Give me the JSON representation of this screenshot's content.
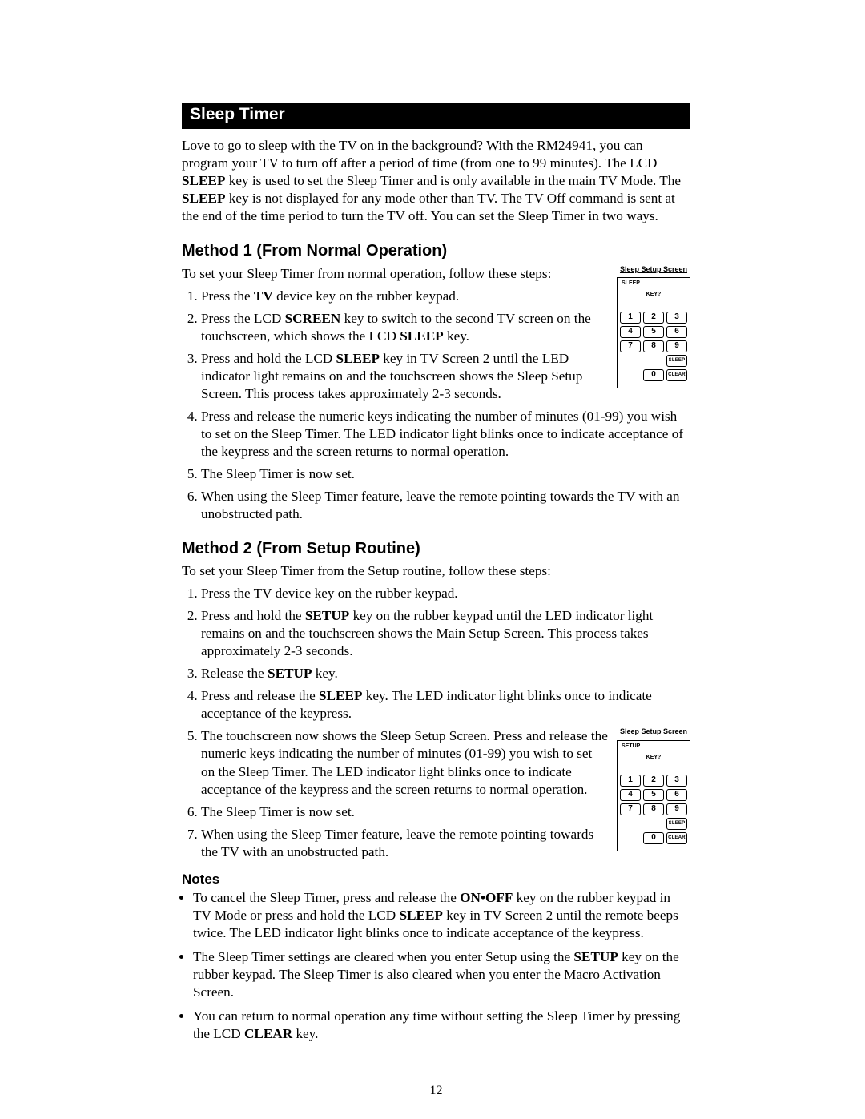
{
  "page": {
    "number": "12"
  },
  "section": {
    "title": "Sleep Timer"
  },
  "intro_html": "Love to go to sleep with the TV on in the background? With the RM24941, you can program your TV to turn off after a period of time (from one to 99 minutes). The LCD <b>SLEEP</b> key is used to set the Sleep Timer and is only available in the main TV Mode. The <b>SLEEP</b> key is not displayed for any mode other than TV. The TV Off command is sent at the end of the time period to turn the TV off. You can set the Sleep Timer in two ways.",
  "method1": {
    "heading": "Method 1 (From Normal Operation)",
    "lead": "To set your Sleep Timer from normal operation, follow these steps:",
    "fig": {
      "caption": "Sleep Setup Screen",
      "mode": "SLEEP",
      "sub": "KEY?",
      "keys": [
        [
          "1",
          "2",
          "3"
        ],
        [
          "4",
          "5",
          "6"
        ],
        [
          "7",
          "8",
          "9"
        ],
        [
          "",
          "0",
          ""
        ]
      ],
      "rlabels": {
        "r3": "SLEEP",
        "r4": "CLEAR"
      }
    },
    "steps_html": [
      "Press the <b>TV</b> device key on the rubber keypad.",
      "Press the LCD <b>SCREEN</b> key to switch to the second TV screen on the touchscreen, which shows the LCD <b>SLEEP</b> key.",
      "Press and hold the LCD <b>SLEEP</b> key in TV Screen 2 until the LED indicator light remains on and the touchscreen shows the Sleep Setup Screen. This process takes approximately 2-3 seconds.",
      "Press and release the numeric keys indicating the number of minutes (01-99) you wish to set on the Sleep Timer. The LED indicator light blinks once to indicate acceptance of the keypress and the screen returns to normal operation.",
      "The Sleep Timer is now set.",
      "When using the Sleep Timer feature, leave the remote pointing towards the TV with an unobstructed path."
    ]
  },
  "method2": {
    "heading": "Method 2 (From Setup Routine)",
    "lead": "To set your Sleep Timer from the Setup routine, follow these steps:",
    "fig": {
      "caption": "Sleep Setup Screen",
      "mode": "SETUP",
      "sub": "KEY?",
      "keys": [
        [
          "1",
          "2",
          "3"
        ],
        [
          "4",
          "5",
          "6"
        ],
        [
          "7",
          "8",
          "9"
        ],
        [
          "",
          "0",
          ""
        ]
      ],
      "rlabels": {
        "r3": "SLEEP",
        "r4": "CLEAR"
      }
    },
    "steps_html": [
      "Press the TV device key on the rubber keypad.",
      "Press and hold the <b>SETUP</b> key on the rubber keypad until the LED indicator light remains on and the touchscreen shows the Main Setup Screen. This process takes approximately 2-3 seconds.",
      "Release the <b>SETUP</b> key.",
      "Press and release the <b>SLEEP</b> key. The LED indicator light blinks once to indicate acceptance of the keypress.",
      "The touchscreen now shows the Sleep Setup Screen. Press and release the numeric keys indicating the number of minutes (01-99) you wish to set on the Sleep Timer. The LED indicator light blinks once to indicate acceptance of the keypress and the screen returns to normal operation.",
      "The Sleep Timer is now set.",
      "When using the Sleep Timer feature, leave the remote pointing towards the TV with an unobstructed path."
    ]
  },
  "notes": {
    "heading": "Notes",
    "items_html": [
      "To cancel the Sleep Timer, press and release the <b>ON•OFF</b> key on the rubber keypad in TV Mode or press and hold the LCD <b>SLEEP</b> key in TV Screen 2 until the remote beeps twice. The LED indicator light blinks once to indicate acceptance of the keypress.",
      "The Sleep Timer settings are cleared when you enter Setup using the <b>SETUP</b> key on the rubber keypad. The Sleep Timer is also cleared when you enter the Macro Activation Screen.",
      "You can return to normal operation any time without setting the Sleep Timer by pressing the LCD <b>CLEAR</b> key."
    ]
  }
}
